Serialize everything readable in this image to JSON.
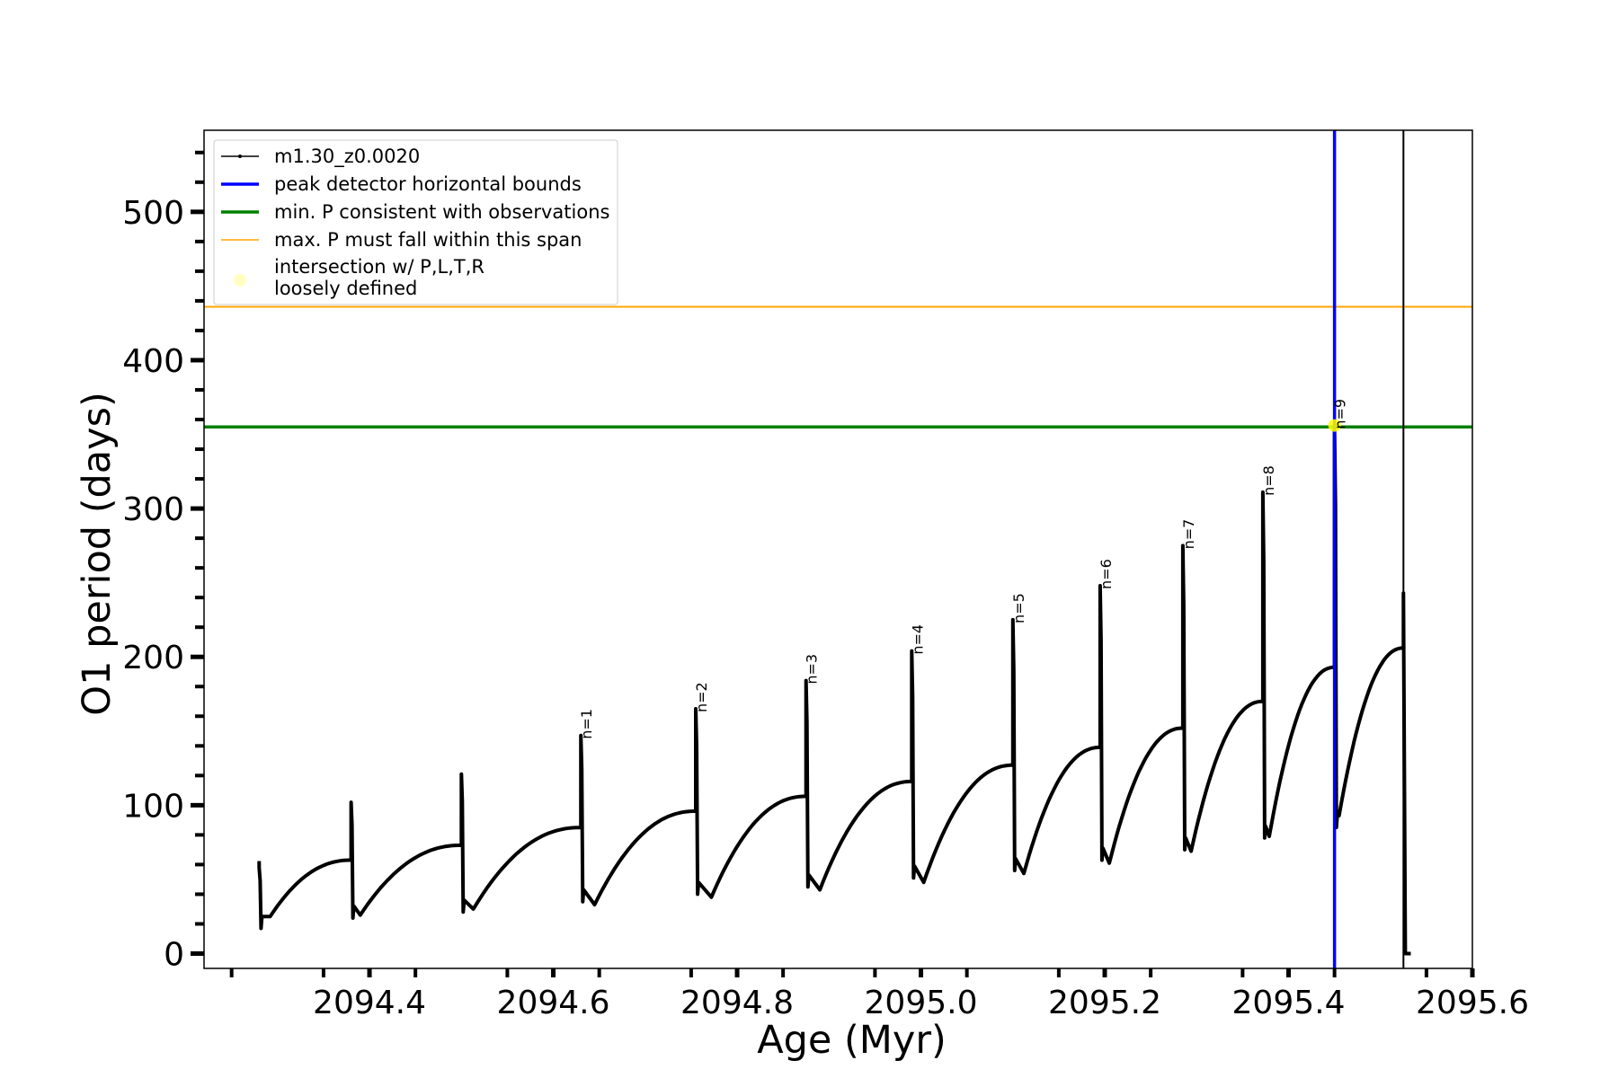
{
  "chart_data": {
    "type": "line",
    "xlabel": "Age (Myr)",
    "ylabel": "O1 period (days)",
    "xlim": [
      2094.22,
      2095.6
    ],
    "ylim": [
      -10,
      555
    ],
    "x_ticks": [
      2094.4,
      2094.6,
      2094.8,
      2095.0,
      2095.2,
      2095.4,
      2095.6
    ],
    "x_tick_labels": [
      "2094.4",
      "2094.6",
      "2094.8",
      "2095.0",
      "2095.2",
      "2095.4",
      "2095.6"
    ],
    "y_ticks": [
      0,
      100,
      200,
      300,
      400,
      500
    ],
    "y_tick_labels": [
      "0",
      "100",
      "200",
      "300",
      "400",
      "500"
    ],
    "grid": false,
    "legend_position": "top-left",
    "legend": [
      {
        "label": "m1.30_z0.0020",
        "style": "line-marker",
        "color": "#000000"
      },
      {
        "label": "peak detector horizontal bounds",
        "style": "line",
        "color": "#0000ff"
      },
      {
        "label": "min. P consistent with observations",
        "style": "line",
        "color": "#008000"
      },
      {
        "label": "max. P must fall within this span",
        "style": "line",
        "color": "#ffa500"
      },
      {
        "label": "intersection w/ P,L,T,R",
        "label2": "loosely defined",
        "style": "marker",
        "color": "#ffff66"
      }
    ],
    "hlines": [
      {
        "name": "min. P consistent with observations",
        "y": 355,
        "color": "#008000"
      },
      {
        "name": "max. P must fall within this span",
        "y": 436,
        "color": "#ffa500"
      }
    ],
    "vlines": [
      {
        "name": "peak detector horizontal bounds",
        "x": 2095.45,
        "color": "#0000ff"
      },
      {
        "name": "end",
        "x": 2095.525,
        "color": "#000000"
      }
    ],
    "intersection_point": {
      "x": 2095.45,
      "y": 356,
      "color": "#ffff00"
    },
    "series": [
      {
        "name": "m1.30_z0.0020",
        "color": "#000000",
        "cycles": [
          {
            "start": 2094.28,
            "spike": 58,
            "dip": 17,
            "dipx": 2094.292,
            "min": 25,
            "end": 2094.38,
            "peak": 63
          },
          {
            "start": 2094.38,
            "spike": 102,
            "dip": 24,
            "dipx": 2094.39,
            "min": 26,
            "end": 2094.5,
            "peak": 73
          },
          {
            "start": 2094.5,
            "spike": 121,
            "dip": 28,
            "dipx": 2094.513,
            "min": 30,
            "end": 2094.63,
            "peak": 85
          },
          {
            "start": 2094.63,
            "spike": 147,
            "dip": 35,
            "dipx": 2094.645,
            "min": 33,
            "end": 2094.755,
            "peak": 96
          },
          {
            "start": 2094.755,
            "spike": 165,
            "dip": 40,
            "dipx": 2094.772,
            "min": 38,
            "end": 2094.875,
            "peak": 106
          },
          {
            "start": 2094.875,
            "spike": 184,
            "dip": 45,
            "dipx": 2094.89,
            "min": 43,
            "end": 2094.99,
            "peak": 116
          },
          {
            "start": 2094.99,
            "spike": 204,
            "dip": 51,
            "dipx": 2095.003,
            "min": 48,
            "end": 2095.1,
            "peak": 127
          },
          {
            "start": 2095.1,
            "spike": 225,
            "dip": 56,
            "dipx": 2095.112,
            "min": 54,
            "end": 2095.195,
            "peak": 139
          },
          {
            "start": 2095.195,
            "spike": 248,
            "dip": 63,
            "dipx": 2095.205,
            "min": 61,
            "end": 2095.285,
            "peak": 152
          },
          {
            "start": 2095.285,
            "spike": 275,
            "dip": 70,
            "dipx": 2095.294,
            "min": 69,
            "end": 2095.372,
            "peak": 170
          },
          {
            "start": 2095.372,
            "spike": 311,
            "dip": 78,
            "dipx": 2095.379,
            "min": 79,
            "end": 2095.45,
            "peak": 193
          },
          {
            "start": 2095.45,
            "spike": 356,
            "dip": 85,
            "dipx": 2095.455,
            "min": 93,
            "end": 2095.525,
            "peak": 206
          }
        ],
        "tail": [
          {
            "x": 2095.525,
            "y": 243
          },
          {
            "x": 2095.527,
            "y": 0
          },
          {
            "x": 2095.533,
            "y": 0
          }
        ]
      }
    ],
    "annotations": [
      {
        "text": "n=1",
        "x": 2094.63,
        "y": 147
      },
      {
        "text": "n=2",
        "x": 2094.755,
        "y": 165
      },
      {
        "text": "n=3",
        "x": 2094.875,
        "y": 184
      },
      {
        "text": "n=4",
        "x": 2094.99,
        "y": 204
      },
      {
        "text": "n=5",
        "x": 2095.1,
        "y": 225
      },
      {
        "text": "n=6",
        "x": 2095.195,
        "y": 248
      },
      {
        "text": "n=7",
        "x": 2095.285,
        "y": 275
      },
      {
        "text": "n=8",
        "x": 2095.372,
        "y": 311
      },
      {
        "text": "n=9",
        "x": 2095.45,
        "y": 356
      }
    ]
  }
}
